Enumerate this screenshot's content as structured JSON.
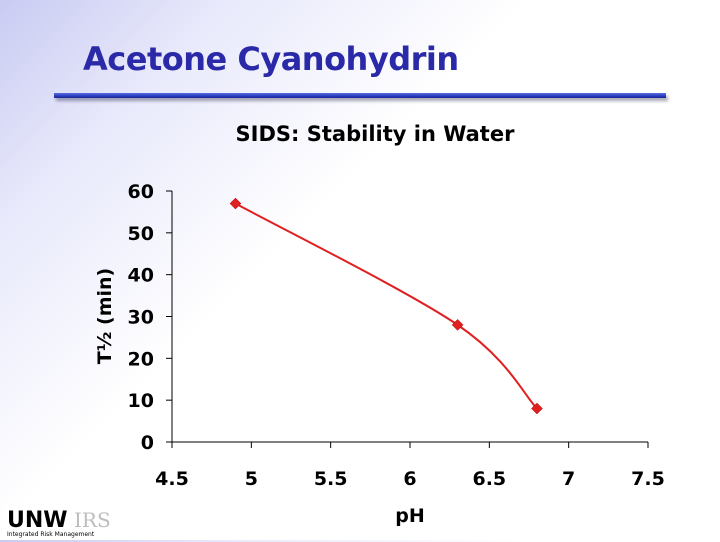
{
  "slide": {
    "title": "Acetone Cyanohydrin"
  },
  "logo": {
    "text": "UNW",
    "mark": "IRS",
    "tagline": "Integrated Risk Management"
  },
  "colors": {
    "series": "#e02020",
    "title": "#2a2aa8",
    "axis": "#000000"
  },
  "chart_data": {
    "type": "line",
    "title": "SIDS: Stability in Water",
    "xlabel": "pH",
    "ylabel": "T½ (min)",
    "xlim": [
      4.5,
      7.5
    ],
    "ylim": [
      0,
      60
    ],
    "x_ticks": [
      4.5,
      5,
      5.5,
      6,
      6.5,
      7,
      7.5
    ],
    "x_tick_labels": [
      "4.5",
      "5",
      "5.5",
      "6",
      "6.5",
      "7",
      "7.5"
    ],
    "y_ticks": [
      0,
      10,
      20,
      30,
      40,
      50,
      60
    ],
    "y_tick_labels": [
      "0",
      "10",
      "20",
      "30",
      "40",
      "50",
      "60"
    ],
    "grid": false,
    "legend": "none",
    "series": [
      {
        "x": [
          4.9,
          6.3,
          6.8
        ],
        "y": [
          57,
          28,
          8
        ],
        "marker": "diamond",
        "smooth": true
      }
    ]
  }
}
